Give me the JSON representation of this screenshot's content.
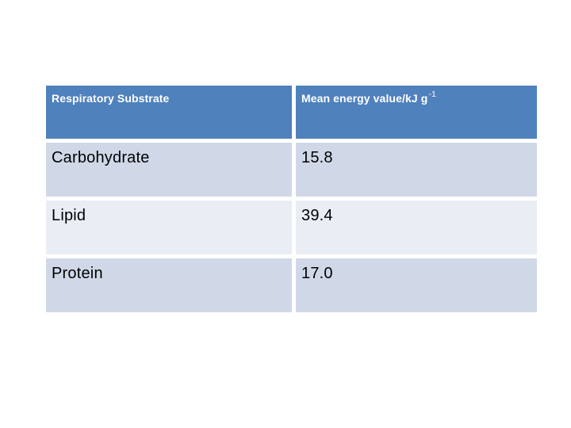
{
  "slide": {
    "background_color": "#FFFFFF"
  },
  "table": {
    "header": {
      "col1": "Respiratory Substrate",
      "col2_base": "Mean energy value/kJ g",
      "col2_sup": "-1"
    },
    "rows": [
      {
        "substrate": "Carbohydrate",
        "value": "15.8"
      },
      {
        "substrate": "Lipid",
        "value": "39.4"
      },
      {
        "substrate": "Protein",
        "value": "17.0"
      }
    ],
    "colors": {
      "header_bg": "#4F81BD",
      "header_text": "#FFFFFF",
      "band_odd": "#D0D8E8",
      "band_even": "#E9EDF4",
      "gridline": "#FFFFFF",
      "body_text": "#000000"
    }
  },
  "chart_data": {
    "type": "table",
    "title": "",
    "columns": [
      "Respiratory Substrate",
      "Mean energy value/kJ g-1"
    ],
    "rows": [
      [
        "Carbohydrate",
        15.8
      ],
      [
        "Lipid",
        39.4
      ],
      [
        "Protein",
        17.0
      ]
    ]
  }
}
